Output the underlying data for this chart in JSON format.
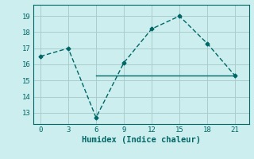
{
  "x": [
    0,
    3,
    6,
    9,
    12,
    15,
    18,
    21
  ],
  "y_curve": [
    16.5,
    17.0,
    12.7,
    16.1,
    18.2,
    19.0,
    17.3,
    15.3
  ],
  "hline_y": 15.3,
  "hline_xstart": 6,
  "hline_xend": 21,
  "line_color": "#006666",
  "bg_color": "#cceeee",
  "grid_color": "#aacccc",
  "xlabel": "Humidex (Indice chaleur)",
  "xlim": [
    -0.8,
    22.5
  ],
  "ylim": [
    12.3,
    19.7
  ],
  "xticks": [
    0,
    3,
    6,
    9,
    12,
    15,
    18,
    21
  ],
  "yticks": [
    13,
    14,
    15,
    16,
    17,
    18,
    19
  ],
  "marker": "D",
  "marker_size": 2.5,
  "line_width": 1.0,
  "xlabel_fontsize": 7.5
}
